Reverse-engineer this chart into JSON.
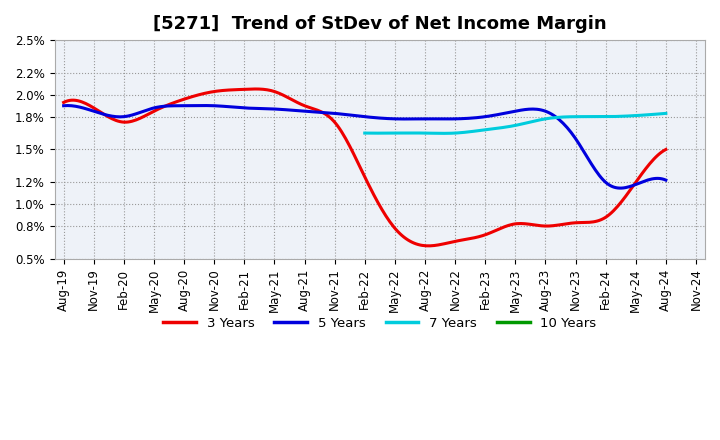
{
  "title": "[5271]  Trend of StDev of Net Income Margin",
  "background_color": "#ffffff",
  "plot_background": "#eef2f8",
  "grid_color": "#aaaaaa",
  "ylim": [
    0.005,
    0.025
  ],
  "yticks": [
    0.005,
    0.008,
    0.01,
    0.012,
    0.015,
    0.018,
    0.02,
    0.022,
    0.025
  ],
  "ytick_labels": [
    "0.5%",
    "0.8%",
    "1.0%",
    "1.2%",
    "1.5%",
    "1.8%",
    "2.0%",
    "2.2%",
    "2.5%"
  ],
  "x_labels": [
    "Aug-19",
    "Nov-19",
    "Feb-20",
    "May-20",
    "Aug-20",
    "Nov-20",
    "Feb-21",
    "May-21",
    "Aug-21",
    "Nov-21",
    "Feb-22",
    "May-22",
    "Aug-22",
    "Nov-22",
    "Feb-23",
    "May-23",
    "Aug-23",
    "Nov-23",
    "Feb-24",
    "May-24",
    "Aug-24",
    "Nov-24"
  ],
  "series": {
    "3 Years": {
      "color": "#ee0000",
      "linewidth": 2.2,
      "values": [
        0.0193,
        0.0188,
        0.0175,
        0.0185,
        0.0196,
        0.0203,
        0.0205,
        0.0203,
        0.019,
        0.0175,
        0.0125,
        0.0078,
        0.0062,
        0.0066,
        0.0072,
        0.0082,
        0.008,
        0.0083,
        0.0088,
        0.012,
        0.015,
        null
      ]
    },
    "5 Years": {
      "color": "#0000dd",
      "linewidth": 2.2,
      "values": [
        0.019,
        0.0185,
        0.018,
        0.0188,
        0.019,
        0.019,
        0.0188,
        0.0187,
        0.0185,
        0.0183,
        0.018,
        0.0178,
        0.0178,
        0.0178,
        0.018,
        0.0185,
        0.0185,
        0.016,
        0.012,
        0.0118,
        0.0122,
        null
      ]
    },
    "7 Years": {
      "color": "#00ccdd",
      "linewidth": 2.2,
      "values": [
        null,
        null,
        null,
        null,
        null,
        null,
        null,
        null,
        null,
        null,
        0.0165,
        0.0165,
        0.0165,
        0.0165,
        0.0168,
        0.0172,
        0.0178,
        0.018,
        0.018,
        0.0181,
        0.0183,
        null
      ]
    },
    "10 Years": {
      "color": "#009900",
      "linewidth": 2.2,
      "values": [
        null,
        null,
        null,
        null,
        null,
        null,
        null,
        null,
        null,
        null,
        null,
        null,
        null,
        null,
        null,
        null,
        null,
        null,
        null,
        null,
        null,
        null
      ]
    }
  },
  "legend": {
    "labels": [
      "3 Years",
      "5 Years",
      "7 Years",
      "10 Years"
    ],
    "colors": [
      "#ee0000",
      "#0000dd",
      "#00ccdd",
      "#009900"
    ],
    "location": "lower center",
    "ncol": 4
  },
  "title_fontsize": 13,
  "tick_fontsize": 8.5
}
